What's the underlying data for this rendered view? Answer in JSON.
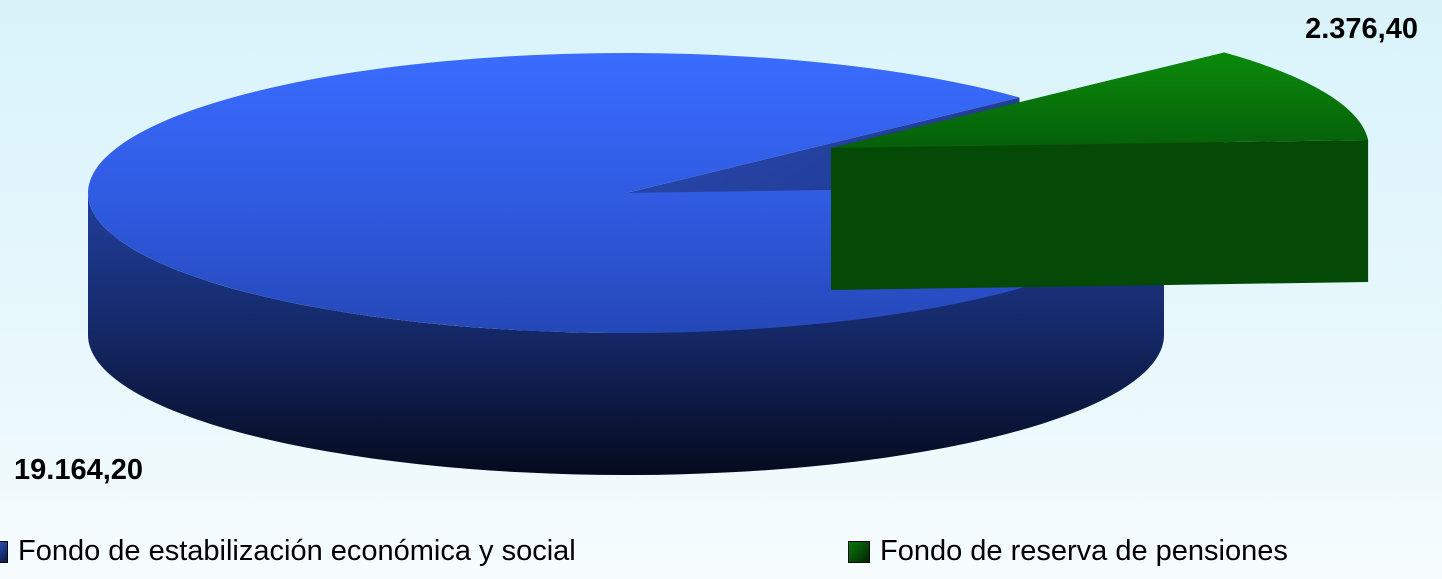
{
  "chart_data": {
    "type": "pie",
    "style": "3d-exploded",
    "slices": [
      {
        "name": "Fondo de estabilización económica y social",
        "value": 19164.2,
        "label": "19.164,20",
        "color": "#3264f0"
      },
      {
        "name": "Fondo de reserva de pensiones",
        "value": 2376.4,
        "label": "2.376,40",
        "color": "#0a7a0a"
      }
    ],
    "legend_position": "bottom"
  },
  "legend": {
    "items": [
      {
        "label": "Fondo de estabilización económica y social",
        "color": "#2e5fe8"
      },
      {
        "label": "Fondo de reserva de pensiones",
        "color": "#0a7a0a"
      }
    ]
  }
}
